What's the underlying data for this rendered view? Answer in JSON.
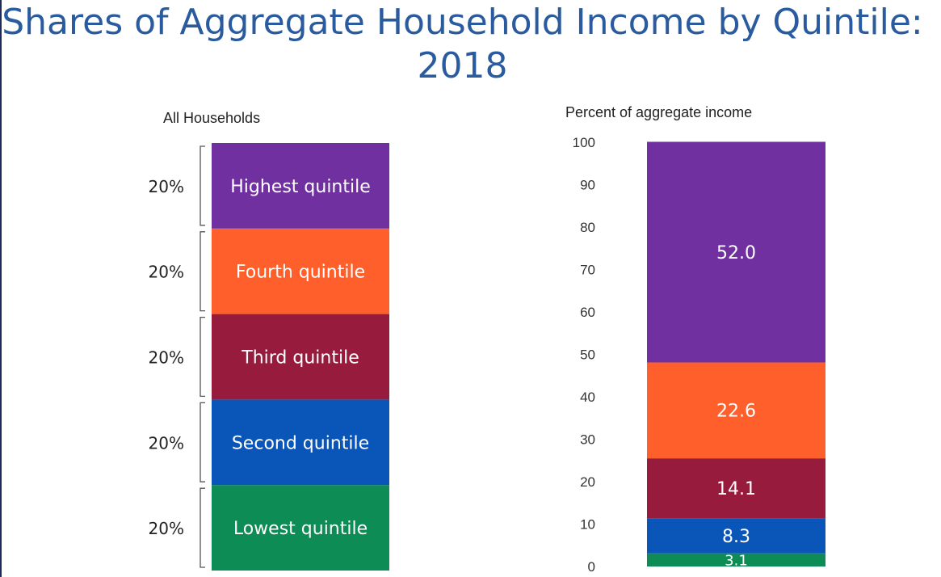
{
  "title_line1": "Shares of Aggregate Household Income by Quintile:",
  "title_line2": "2018",
  "chart_data": [
    {
      "type": "bar",
      "title": "All Households",
      "stacked": true,
      "categories": [
        "Lowest quintile",
        "Second quintile",
        "Third quintile",
        "Fourth quintile",
        "Highest quintile"
      ],
      "values": [
        20,
        20,
        20,
        20,
        20
      ],
      "value_labels": [
        "20%",
        "20%",
        "20%",
        "20%",
        "20%"
      ],
      "colors": [
        "#0e8c55",
        "#0a55b8",
        "#971b3c",
        "#ff5f2a",
        "#7030a0"
      ]
    },
    {
      "type": "bar",
      "title": "",
      "ylabel": "Percent of aggregate income",
      "stacked": true,
      "ylim": [
        0,
        100
      ],
      "yticks": [
        "0",
        "10",
        "20",
        "30",
        "40",
        "50",
        "60",
        "70",
        "80",
        "90",
        "100"
      ],
      "series": [
        {
          "name": "Lowest quintile",
          "value": 3.1,
          "label": "3.1",
          "color": "#0e8c55"
        },
        {
          "name": "Second quintile",
          "value": 8.3,
          "label": "8.3",
          "color": "#0a55b8"
        },
        {
          "name": "Third quintile",
          "value": 14.1,
          "label": "14.1",
          "color": "#971b3c"
        },
        {
          "name": "Fourth quintile",
          "value": 22.6,
          "label": "22.6",
          "color": "#ff5f2a"
        },
        {
          "name": "Highest quintile",
          "value": 52.0,
          "label": "52.0",
          "color": "#7030a0"
        }
      ]
    }
  ]
}
